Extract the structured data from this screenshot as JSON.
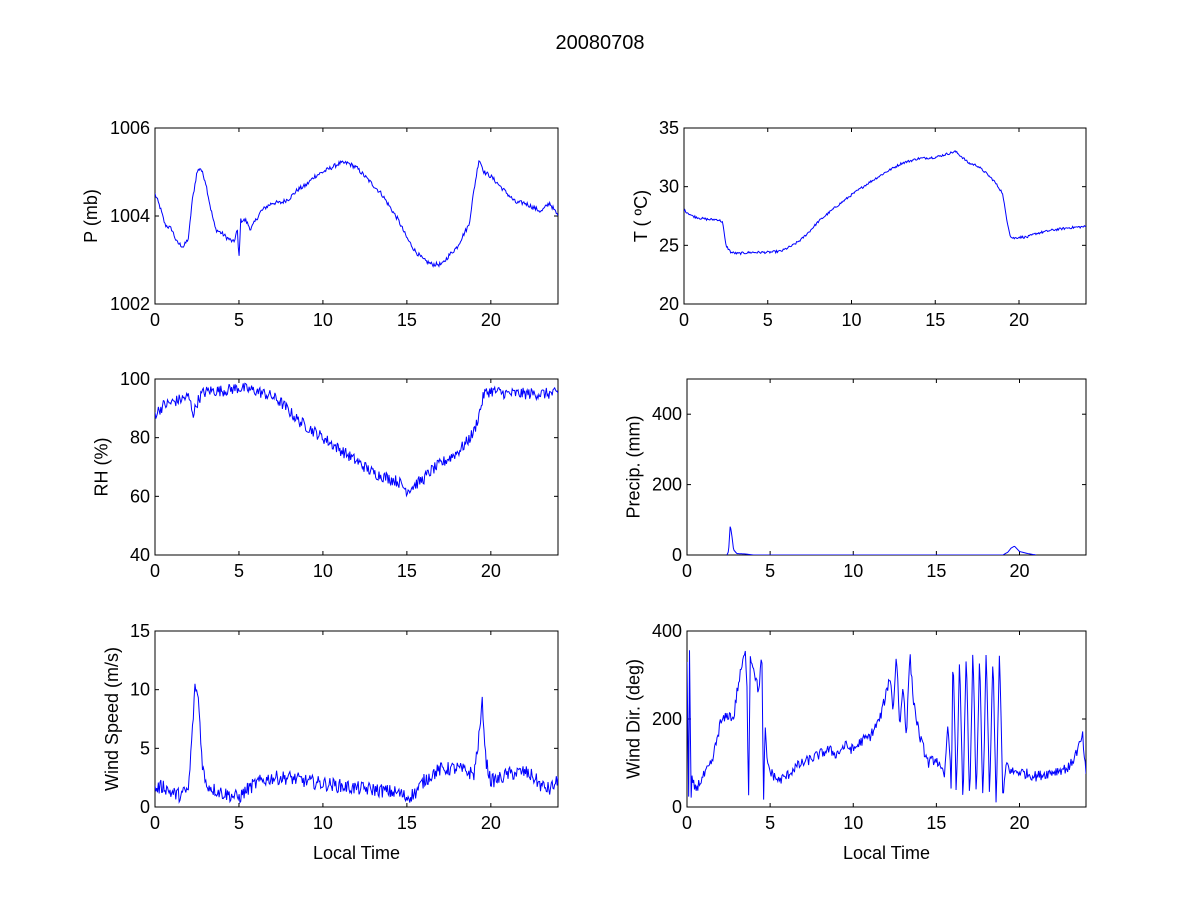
{
  "figure": {
    "title": "20080708",
    "colors": {
      "line": "#0000ff",
      "axes": "#000000",
      "background": "#ffffff"
    }
  },
  "chart_data": [
    {
      "type": "line",
      "ylabel": "P (mb)",
      "xlabel": "",
      "xlim": [
        0,
        24
      ],
      "ylim": [
        1002,
        1006
      ],
      "xticks": [
        0,
        5,
        10,
        15,
        20
      ],
      "yticks": [
        1002,
        1004,
        1006
      ],
      "grid": false,
      "noise": 0.05,
      "series": [
        {
          "x": [
            0,
            0.3,
            0.6,
            1.0,
            1.3,
            1.7,
            2.0,
            2.2,
            2.5,
            2.7,
            3.0,
            3.3,
            3.6,
            4.0,
            4.3,
            4.7,
            4.9,
            5.0,
            5.1,
            5.4,
            5.7,
            6.0,
            6.3,
            6.6,
            7.0,
            7.5,
            8.0,
            8.5,
            9.0,
            9.5,
            10.0,
            10.5,
            11.0,
            11.5,
            12.0,
            12.5,
            13.0,
            13.5,
            14.0,
            14.5,
            15.0,
            15.5,
            16.0,
            16.5,
            16.8,
            17.1,
            17.5,
            18.0,
            18.4,
            18.7,
            19.0,
            19.3,
            19.6,
            20.0,
            20.5,
            21.0,
            21.5,
            22.0,
            22.5,
            23.0,
            23.5,
            24.0
          ],
          "y": [
            1004.5,
            1004.2,
            1003.8,
            1003.7,
            1003.4,
            1003.3,
            1003.5,
            1004.3,
            1005.0,
            1005.1,
            1004.8,
            1004.2,
            1003.7,
            1003.6,
            1003.5,
            1003.4,
            1003.7,
            1003.0,
            1003.9,
            1003.9,
            1003.7,
            1003.9,
            1004.1,
            1004.2,
            1004.3,
            1004.3,
            1004.4,
            1004.6,
            1004.7,
            1004.9,
            1005.0,
            1005.1,
            1005.2,
            1005.2,
            1005.1,
            1004.9,
            1004.7,
            1004.5,
            1004.2,
            1003.9,
            1003.5,
            1003.2,
            1003.0,
            1002.9,
            1002.9,
            1002.9,
            1003.1,
            1003.3,
            1003.6,
            1003.8,
            1004.6,
            1005.3,
            1005.0,
            1004.9,
            1004.7,
            1004.5,
            1004.3,
            1004.3,
            1004.2,
            1004.1,
            1004.3,
            1004.0
          ]
        }
      ]
    },
    {
      "type": "line",
      "ylabel": "T ( ºC)",
      "xlabel": "",
      "xlim": [
        0,
        24
      ],
      "ylim": [
        20,
        35
      ],
      "xticks": [
        0,
        5,
        10,
        15,
        20
      ],
      "yticks": [
        20,
        25,
        30,
        35
      ],
      "grid": false,
      "noise": 0.1,
      "series": [
        {
          "x": [
            0,
            0.5,
            1.0,
            1.5,
            2.0,
            2.3,
            2.5,
            2.8,
            3.2,
            4.0,
            5.0,
            5.8,
            6.5,
            7.0,
            7.5,
            8.0,
            9.0,
            10.0,
            11.0,
            12.0,
            13.0,
            14.0,
            15.0,
            15.5,
            16.2,
            16.7,
            17.0,
            17.5,
            18.0,
            18.5,
            19.0,
            19.3,
            19.5,
            19.7,
            20.0,
            20.5,
            21.0,
            22.0,
            23.0,
            24.0
          ],
          "y": [
            28.0,
            27.5,
            27.3,
            27.2,
            27.2,
            27.0,
            25.0,
            24.4,
            24.3,
            24.4,
            24.4,
            24.5,
            25.0,
            25.5,
            26.2,
            27.0,
            28.2,
            29.3,
            30.3,
            31.2,
            32.0,
            32.4,
            32.5,
            32.7,
            33.0,
            32.4,
            32.0,
            31.8,
            31.2,
            30.5,
            29.5,
            27.0,
            25.7,
            25.6,
            25.7,
            25.7,
            26.0,
            26.3,
            26.5,
            26.6
          ]
        }
      ]
    },
    {
      "type": "line",
      "ylabel": "RH (%)",
      "xlabel": "",
      "xlim": [
        0,
        24
      ],
      "ylim": [
        40,
        100
      ],
      "xticks": [
        0,
        5,
        10,
        15,
        20
      ],
      "yticks": [
        40,
        60,
        80,
        100
      ],
      "grid": false,
      "noise": 2.0,
      "series": [
        {
          "x": [
            0,
            0.5,
            1.0,
            1.5,
            2.0,
            2.3,
            2.5,
            2.8,
            3.2,
            4.0,
            5.0,
            6.0,
            6.5,
            7.0,
            7.5,
            8.0,
            8.5,
            9.0,
            9.5,
            10.0,
            10.5,
            11.0,
            11.5,
            12.0,
            12.5,
            13.0,
            13.5,
            14.0,
            14.5,
            15.0,
            15.5,
            16.0,
            16.5,
            17.0,
            17.5,
            18.0,
            18.5,
            19.0,
            19.3,
            19.6,
            20.0,
            21.0,
            22.0,
            23.0,
            24.0
          ],
          "y": [
            88,
            91,
            92,
            93,
            94,
            88,
            92,
            95,
            96,
            96,
            97,
            96,
            95,
            94,
            92,
            89,
            86,
            84,
            82,
            80,
            78,
            76,
            74,
            72,
            70,
            68,
            67,
            66,
            65,
            62,
            64,
            66,
            69,
            71,
            73,
            75,
            78,
            82,
            88,
            95,
            96,
            95,
            95,
            95,
            95
          ]
        }
      ]
    },
    {
      "type": "line",
      "ylabel": "Precip. (mm)",
      "xlabel": "",
      "xlim": [
        0,
        24
      ],
      "ylim": [
        0,
        500
      ],
      "xticks": [
        0,
        5,
        10,
        15,
        20
      ],
      "yticks": [
        0,
        200,
        400
      ],
      "grid": false,
      "noise": 0,
      "series": [
        {
          "x": [
            2.4,
            2.5,
            2.6,
            2.7,
            2.8,
            3.0,
            3.5,
            4.0,
            19.0,
            19.3,
            19.5,
            19.7,
            20.0,
            20.5,
            21.0
          ],
          "y": [
            0,
            10,
            85,
            55,
            15,
            4,
            3,
            0,
            0,
            8,
            20,
            25,
            10,
            4,
            0
          ]
        }
      ]
    },
    {
      "type": "line",
      "ylabel": "Wind Speed (m/s)",
      "xlabel": "Local Time",
      "xlim": [
        0,
        24
      ],
      "ylim": [
        0,
        15
      ],
      "xticks": [
        0,
        5,
        10,
        15,
        20
      ],
      "yticks": [
        0,
        5,
        10,
        15
      ],
      "grid": false,
      "noise": 0.6,
      "series": [
        {
          "x": [
            0,
            0.5,
            1.0,
            1.5,
            2.0,
            2.2,
            2.4,
            2.6,
            2.8,
            3.0,
            3.5,
            4.0,
            4.5,
            5.0,
            5.5,
            6.0,
            6.5,
            7.0,
            8.0,
            9.0,
            10.0,
            11.0,
            12.0,
            13.0,
            14.0,
            14.5,
            15.0,
            15.5,
            16.0,
            16.5,
            17.0,
            18.0,
            19.0,
            19.3,
            19.5,
            19.7,
            20.0,
            20.5,
            21.0,
            22.0,
            22.5,
            23.0,
            23.5,
            24.0
          ],
          "y": [
            1.5,
            1.8,
            1.2,
            1.0,
            1.5,
            6.0,
            10.5,
            9.0,
            4.0,
            2.0,
            1.5,
            1.2,
            1.0,
            0.8,
            1.5,
            2.0,
            2.3,
            2.5,
            2.5,
            2.2,
            2.0,
            1.8,
            1.6,
            1.5,
            1.3,
            1.2,
            0.8,
            1.2,
            2.2,
            2.8,
            3.2,
            3.3,
            2.8,
            6.0,
            9.0,
            4.0,
            2.2,
            2.4,
            2.8,
            3.0,
            2.6,
            1.8,
            1.5,
            2.2
          ]
        }
      ]
    },
    {
      "type": "line",
      "ylabel": "Wind Dir. (deg)",
      "xlabel": "Local Time",
      "xlim": [
        0,
        24
      ],
      "ylim": [
        0,
        400
      ],
      "xticks": [
        0,
        5,
        10,
        15,
        20
      ],
      "yticks": [
        0,
        200,
        400
      ],
      "grid": false,
      "noise": 12,
      "series": [
        {
          "x": [
            0,
            0.1,
            0.15,
            0.25,
            0.3,
            0.5,
            1.0,
            1.5,
            2.0,
            2.5,
            2.8,
            3.0,
            3.3,
            3.5,
            3.6,
            3.7,
            3.8,
            4.0,
            4.3,
            4.5,
            4.6,
            4.7,
            4.8,
            5.0,
            5.5,
            6.0,
            6.5,
            7.0,
            7.5,
            8.0,
            8.5,
            9.0,
            9.5,
            10.0,
            10.5,
            11.0,
            11.3,
            11.6,
            12.0,
            12.2,
            12.4,
            12.6,
            12.8,
            13.0,
            13.2,
            13.4,
            13.6,
            13.8,
            14.0,
            14.5,
            15.0,
            15.3,
            15.5,
            15.7,
            15.9,
            16.0,
            16.2,
            16.4,
            16.6,
            16.8,
            17.0,
            17.2,
            17.4,
            17.6,
            17.8,
            18.0,
            18.2,
            18.4,
            18.6,
            18.8,
            19.0,
            19.2,
            19.5,
            20.0,
            21.0,
            22.0,
            23.0,
            23.5,
            23.8,
            24.0
          ],
          "y": [
            340,
            20,
            350,
            10,
            60,
            40,
            70,
            100,
            190,
            210,
            200,
            260,
            320,
            350,
            300,
            10,
            340,
            320,
            260,
            350,
            10,
            180,
            110,
            80,
            60,
            70,
            90,
            100,
            110,
            120,
            130,
            120,
            140,
            130,
            150,
            160,
            180,
            200,
            260,
            300,
            220,
            350,
            180,
            280,
            160,
            350,
            250,
            200,
            160,
            100,
            110,
            80,
            70,
            200,
            40,
            350,
            20,
            340,
            10,
            350,
            0,
            360,
            10,
            350,
            0,
            360,
            10,
            350,
            0,
            360,
            10,
            100,
            80,
            80,
            70,
            80,
            90,
            130,
            160,
            70
          ]
        }
      ]
    }
  ]
}
